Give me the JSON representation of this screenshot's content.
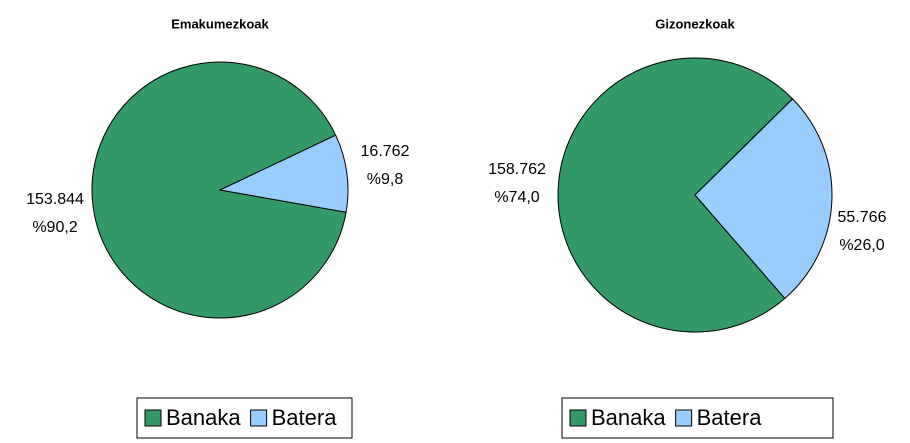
{
  "chart_data": [
    {
      "type": "pie",
      "title": "Emakumezkoak",
      "categories": [
        "Banaka",
        "Batera"
      ],
      "values": [
        153844,
        16762
      ],
      "value_labels": [
        "153.844",
        "16.762"
      ],
      "percent_labels": [
        "%90,2",
        "%9,8"
      ],
      "colors": [
        "#339966",
        "#99ccff"
      ],
      "legend": "bottom"
    },
    {
      "type": "pie",
      "title": "Gizonezkoak",
      "categories": [
        "Banaka",
        "Batera"
      ],
      "values": [
        158762,
        55766
      ],
      "value_labels": [
        "158.762",
        "55.766"
      ],
      "percent_labels": [
        "%74,0",
        "%26,0"
      ],
      "colors": [
        "#339966",
        "#99ccff"
      ],
      "legend": "bottom"
    }
  ]
}
